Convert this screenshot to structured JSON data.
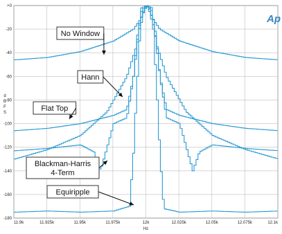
{
  "chart_data": {
    "type": "line",
    "title": "",
    "xlabel": "Hz",
    "ylabel": "dBFS",
    "xlim": [
      11900,
      12100
    ],
    "ylim": [
      -180,
      0
    ],
    "grid": true,
    "logo": "Ap",
    "line_color": "#2a9ad4",
    "x_ticks": [
      {
        "value": 11900,
        "label": "11.9k"
      },
      {
        "value": 11925,
        "label": "11.925k"
      },
      {
        "value": 11950,
        "label": "11.95k"
      },
      {
        "value": 11975,
        "label": "11.975k"
      },
      {
        "value": 12000,
        "label": "12k"
      },
      {
        "value": 12025,
        "label": "12.025k"
      },
      {
        "value": 12050,
        "label": "12.05k"
      },
      {
        "value": 12075,
        "label": "12.075k"
      },
      {
        "value": 12100,
        "label": "12.1k"
      }
    ],
    "y_ticks": [
      {
        "value": 0,
        "label": "+0"
      },
      {
        "value": -20,
        "label": "-20"
      },
      {
        "value": -40,
        "label": "-40"
      },
      {
        "value": -60,
        "label": "-60"
      },
      {
        "value": -80,
        "label": "-80"
      },
      {
        "value": -100,
        "label": "-100"
      },
      {
        "value": -120,
        "label": "-120"
      },
      {
        "value": -140,
        "label": "-140"
      },
      {
        "value": -160,
        "label": "-160"
      },
      {
        "value": -180,
        "label": "-180"
      }
    ],
    "series": [
      {
        "name": "No Window",
        "x": [
          11900,
          11925,
          11950,
          11975,
          11990,
          11995,
          11998,
          12000,
          12002,
          12005,
          12010,
          12025,
          12050,
          12075,
          12100
        ],
        "y": [
          -46,
          -44,
          -39,
          -30,
          -20,
          -12,
          -5,
          0,
          -5,
          -12,
          -20,
          -30,
          -39,
          -44,
          -46
        ]
      },
      {
        "name": "Hann",
        "x": [
          11900,
          11925,
          11950,
          11970,
          11985,
          11992,
          11996,
          11998,
          12000,
          12002,
          12004,
          12008,
          12015,
          12030,
          12050,
          12075,
          12100
        ],
        "y": [
          -130,
          -122,
          -110,
          -90,
          -60,
          -35,
          -10,
          -3,
          0,
          -3,
          -10,
          -35,
          -60,
          -90,
          -110,
          -122,
          -130
        ]
      },
      {
        "name": "Flat Top",
        "x": [
          11900,
          11925,
          11950,
          11975,
          11985,
          11990,
          11996,
          12000,
          12004,
          12010,
          12015,
          12025,
          12050,
          12075,
          12100
        ],
        "y": [
          -106,
          -104,
          -100,
          -93,
          -88,
          -60,
          -2,
          0,
          -2,
          -60,
          -88,
          -93,
          -100,
          -104,
          -106
        ]
      },
      {
        "name": "Blackman-Harris 4-Term",
        "x": [
          11900,
          11925,
          11950,
          11960,
          11965,
          11970,
          11975,
          11985,
          11990,
          11993,
          11996,
          11998,
          12000,
          12002,
          12004,
          12007,
          12010,
          12015,
          12025,
          12030,
          12035,
          12040,
          12050,
          12075,
          12100
        ],
        "y": [
          -123,
          -121,
          -118,
          -124,
          -140,
          -120,
          -100,
          -95,
          -60,
          -25,
          -5,
          -2,
          0,
          -2,
          -5,
          -25,
          -60,
          -95,
          -100,
          -120,
          -140,
          -124,
          -118,
          -121,
          -123
        ]
      },
      {
        "name": "Equiripple",
        "x": [
          11900,
          11925,
          11950,
          11975,
          11987,
          11990,
          11992,
          11995,
          11998,
          12000,
          12002,
          12005,
          12008,
          12010,
          12013,
          12025,
          12050,
          12075,
          12100
        ],
        "y": [
          -175,
          -174,
          -175,
          -174,
          -170,
          -125,
          -80,
          -20,
          -3,
          0,
          -3,
          -20,
          -80,
          -125,
          -172,
          -175,
          -174,
          -175,
          -174
        ]
      }
    ],
    "annotations": [
      {
        "text": "No Window",
        "series": "No Window"
      },
      {
        "text": "Hann",
        "series": "Hann"
      },
      {
        "text": "Flat Top",
        "series": "Flat Top"
      },
      {
        "text": "Blackman-Harris",
        "text2": "4-Term",
        "series": "Blackman-Harris 4-Term"
      },
      {
        "text": "Equiripple",
        "series": "Equiripple"
      }
    ]
  }
}
